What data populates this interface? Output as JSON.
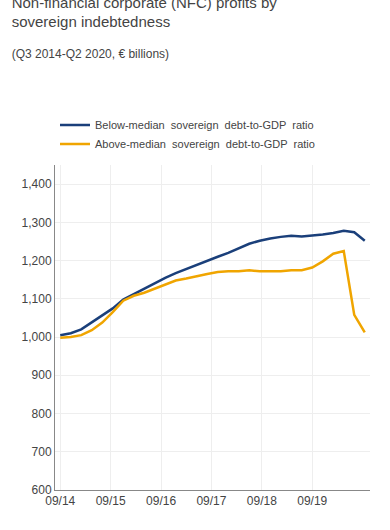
{
  "chart_data": {
    "type": "line",
    "title": "Non-financial corporate (NFC) profits by\nsovereign indebtedness",
    "subtitle": "(Q3 2014-Q2 2020, € billions)",
    "x": [
      0,
      1,
      2,
      3,
      4,
      5,
      6,
      7,
      8,
      9,
      10,
      11,
      12,
      13,
      14,
      15,
      16,
      17,
      18,
      19,
      20,
      21,
      22,
      23,
      24,
      25,
      26,
      27,
      28,
      29
    ],
    "series": [
      {
        "name": "Below-median  sovereign  debt-to-GDP  ratio",
        "color": "#1a3f7a",
        "values": [
          1005,
          1010,
          1020,
          1038,
          1055,
          1075,
          1098,
          1112,
          1128,
          1142,
          1155,
          1167,
          1178,
          1190,
          1200,
          1210,
          1220,
          1232,
          1244,
          1252,
          1258,
          1262,
          1265,
          1263,
          1265,
          1268,
          1272,
          1278,
          1274,
          1252
        ]
      },
      {
        "name": "Above-median  sovereign  debt-to-GDP  ratio",
        "color": "#f0a500",
        "values": [
          998,
          1000,
          1005,
          1018,
          1038,
          1065,
          1095,
          1108,
          1116,
          1126,
          1138,
          1148,
          1153,
          1160,
          1165,
          1170,
          1172,
          1172,
          1175,
          1172,
          1172,
          1172,
          1175,
          1175,
          1182,
          1198,
          1218,
          1225,
          1058,
          1012
        ]
      }
    ],
    "xlim": [
      -0.5,
      29.5
    ],
    "xticks": [
      {
        "value": 0,
        "label": "09/14"
      },
      {
        "value": 4.8,
        "label": "09/15"
      },
      {
        "value": 9.6,
        "label": "09/16"
      },
      {
        "value": 14.4,
        "label": "09/17"
      },
      {
        "value": 19.2,
        "label": "09/18"
      },
      {
        "value": 24.0,
        "label": "09/19"
      }
    ],
    "ylim": [
      600,
      1450
    ],
    "yticks": [
      600,
      700,
      800,
      900,
      {
        "value": 1000,
        "label": "1,000"
      },
      {
        "value": 1100,
        "label": "1,100"
      },
      {
        "value": 1200,
        "label": "1,200"
      },
      {
        "value": 1300,
        "label": "1,300"
      },
      {
        "value": 1400,
        "label": "1,400"
      }
    ],
    "grid": true,
    "legend": "top"
  }
}
